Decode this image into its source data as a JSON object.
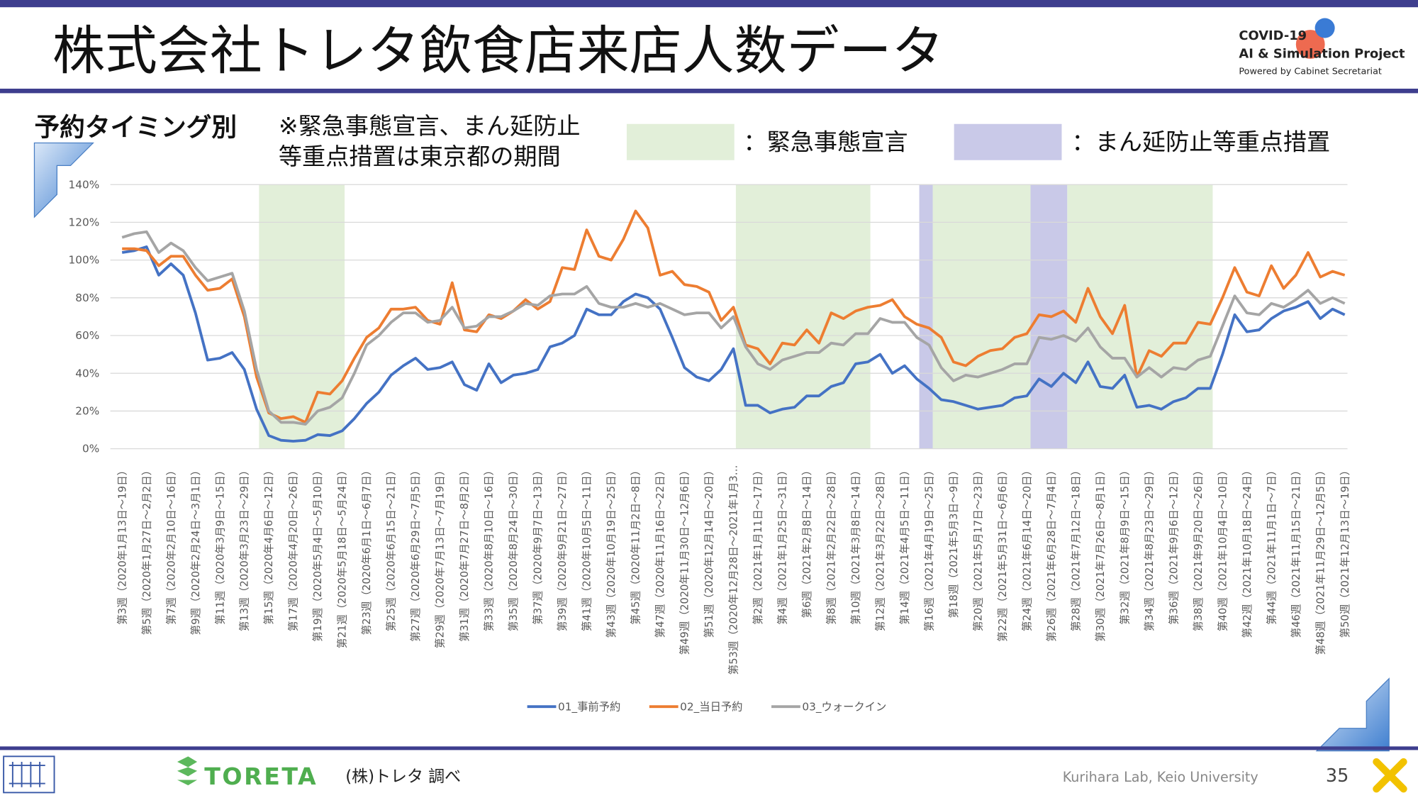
{
  "slide": {
    "title": "株式会社トレタ飲食店来店人数データ",
    "logo": [
      "COVID-19",
      "AI & Simulation Project",
      "Powered by Cabinet Secretariat"
    ],
    "section": "予約タイミング別",
    "note": [
      "※緊急事態宣言、まん延防止",
      "等重点措置は東京都の期間"
    ],
    "footer": {
      "brand": "TORETA",
      "source": "(株)トレタ 調べ",
      "lab": "Kurihara Lab, Keio University",
      "page": "35"
    }
  },
  "chart_data": {
    "type": "line",
    "categories": [
      "第3週（2020年1月13日～19日）",
      null,
      "第5週（2020年1月27日～2月2日）",
      null,
      "第7週（2020年2月10日～16日）",
      null,
      "第9週（2020年2月24日～3月1日）",
      null,
      "第11週（2020年3月9日～15日）",
      null,
      "第13週（2020年3月23日～29日）",
      null,
      "第15週（2020年4月6日～12日）",
      null,
      "第17週（2020年4月20日～26日）",
      null,
      "第19週（2020年5月4日～5月10日）",
      null,
      "第21週（2020年5月18日～5月24日）",
      null,
      "第23週（2020年6月1日～6月7日）",
      null,
      "第25週（2020年6月15日～21日）",
      null,
      "第27週（2020年6月29日～7月5日）",
      null,
      "第29週（2020年7月13日～7月19日）",
      null,
      "第31週（2020年7月27日～8月2日）",
      null,
      "第33週（2020年8月10日～16日）",
      null,
      "第35週（2020年8月24日～30日）",
      null,
      "第37週（2020年9月7日～13日）",
      null,
      "第39週（2020年9月21日～27日）",
      null,
      "第41週（2020年10月5日～11日）",
      null,
      "第43週（2020年10月19日～25日）",
      null,
      "第45週（2020年11月2日～8日）",
      null,
      "第47週（2020年11月16日～22日）",
      null,
      "第49週（2020年11月30日～12月6日）",
      null,
      "第51週（2020年12月14日～20日）",
      null,
      "第53週（2020年12月28日～2021年1月3…",
      null,
      "第2週（2021年1月11日～17日）",
      null,
      "第4週（2021年1月25日～31日）",
      null,
      "第6週（2021年2月8日～14日）",
      null,
      "第8週（2021年2月22日～28日）",
      null,
      "第10週（2021年3月8日～14日）",
      null,
      "第12週（2021年3月22日～28日）",
      null,
      "第14週（2021年4月5日～11日）",
      null,
      "第16週（2021年4月19日～25日）",
      null,
      "第18週（2021年5月3日～9日）",
      null,
      "第20週（2021年5月17日～23日）",
      null,
      "第22週（2021年5月31日～6月6日）",
      null,
      "第24週（2021年6月14日～20日）",
      null,
      "第26週（2021年6月28日～7月4日）",
      null,
      "第28週（2021年7月12日～18日）",
      null,
      "第30週（2021年7月26日～8月1日）",
      null,
      "第32週（2021年8月9日～15日）",
      null,
      "第34週（2021年8月23日～29日）",
      null,
      "第36週（2021年9月6日～12日）",
      null,
      "第38週（2021年9月20日～26日）",
      null,
      "第40週（2021年10月4日～10日）",
      null,
      "第42週（2021年10月18日～24日）",
      null,
      "第44週（2021年11月1日～7日）",
      null,
      "第46週（2021年11月15日～21日）",
      null,
      "第48週（2021年11月29日～12月5日）",
      null,
      "第50週（2021年12月13日～19日）"
    ],
    "series": [
      {
        "name": "01_事前予約",
        "color": "#4472c4",
        "values": [
          104,
          105,
          107,
          92,
          98,
          92,
          72,
          47,
          48,
          51,
          42,
          21,
          7,
          4.5,
          4,
          4.5,
          7.5,
          7,
          9.5,
          16,
          24,
          30,
          39,
          44,
          48,
          42,
          43,
          46,
          34,
          31,
          45,
          35,
          39,
          40,
          42,
          54,
          56,
          60,
          74,
          71,
          71,
          78,
          82,
          80,
          74,
          59,
          43,
          38,
          36,
          42,
          53,
          23,
          23,
          19,
          21,
          22,
          28,
          28,
          33,
          35,
          45,
          46,
          50,
          40,
          44,
          37,
          32,
          26,
          25,
          23,
          21,
          22,
          23,
          27,
          28,
          37,
          33,
          40,
          35,
          46,
          33,
          32,
          39,
          22,
          23,
          21,
          25,
          27,
          32,
          32,
          50,
          71,
          62,
          63,
          69,
          73,
          75,
          78,
          69,
          74,
          71
        ]
      },
      {
        "name": "02_当日予約",
        "color": "#ed7d31",
        "values": [
          106,
          106,
          105,
          97,
          102,
          102,
          92,
          84,
          85,
          90,
          70,
          38,
          19,
          16,
          17,
          14,
          30,
          29,
          36,
          48,
          59,
          64,
          74,
          74,
          75,
          68,
          66,
          88,
          63,
          62,
          71,
          69,
          73,
          79,
          74,
          78,
          96,
          95,
          116,
          102,
          100,
          111,
          126,
          117,
          92,
          94,
          87,
          86,
          83,
          68,
          75,
          55,
          53,
          45,
          56,
          55,
          63,
          56,
          72,
          69,
          73,
          75,
          76,
          79,
          70,
          66,
          64,
          59,
          46,
          44,
          49,
          52,
          53,
          59,
          61,
          71,
          70,
          73,
          67,
          85,
          70,
          61,
          76,
          38,
          52,
          49,
          56,
          56,
          67,
          66,
          80,
          96,
          83,
          81,
          97,
          85,
          92,
          104,
          91,
          94,
          92
        ]
      },
      {
        "name": "03_ウォークイン",
        "color": "#a5a5a5",
        "values": [
          112,
          114,
          115,
          104,
          109,
          105,
          96,
          89,
          91,
          93,
          73,
          42,
          20,
          14,
          14,
          13,
          20,
          22,
          27,
          40,
          55,
          60,
          67,
          72,
          72,
          67,
          68,
          75,
          64,
          65,
          70,
          70,
          73,
          77,
          76,
          81,
          82,
          82,
          86,
          77,
          75,
          75,
          77,
          75,
          77,
          74,
          71,
          72,
          72,
          64,
          70,
          54,
          45,
          42,
          47,
          49,
          51,
          51,
          56,
          55,
          61,
          61,
          69,
          67,
          67,
          59,
          55,
          43,
          36,
          39,
          38,
          40,
          42,
          45,
          45,
          59,
          58,
          60,
          57,
          64,
          54,
          48,
          48,
          38,
          43,
          38,
          43,
          42,
          47,
          49,
          65,
          81,
          72,
          71,
          77,
          75,
          79,
          84,
          77,
          80,
          77
        ]
      }
    ],
    "bands": [
      {
        "name": "：緊急事態宣言",
        "color": "#e2efd9",
        "periods": [
          [
            11.2,
            18.2
          ],
          [
            50.2,
            61.2
          ],
          [
            66.3,
            74.3
          ],
          [
            77.3,
            89.2
          ]
        ]
      },
      {
        "name": "：まん延防止等重点措置",
        "color": "#c9c9e8",
        "periods": [
          [
            65.2,
            66.3
          ],
          [
            74.3,
            77.3
          ]
        ]
      }
    ],
    "ylim": [
      0,
      140
    ],
    "yticks": [
      {
        "value": 0,
        "label": "0%"
      },
      {
        "value": 20,
        "label": "20%"
      },
      {
        "value": 40,
        "label": "40%"
      },
      {
        "value": 60,
        "label": "60%"
      },
      {
        "value": 80,
        "label": "80%"
      },
      {
        "value": 100,
        "label": "100%"
      },
      {
        "value": 120,
        "label": "120%"
      },
      {
        "value": 140,
        "label": "140%"
      }
    ],
    "grid": true,
    "legend": "bottom"
  }
}
